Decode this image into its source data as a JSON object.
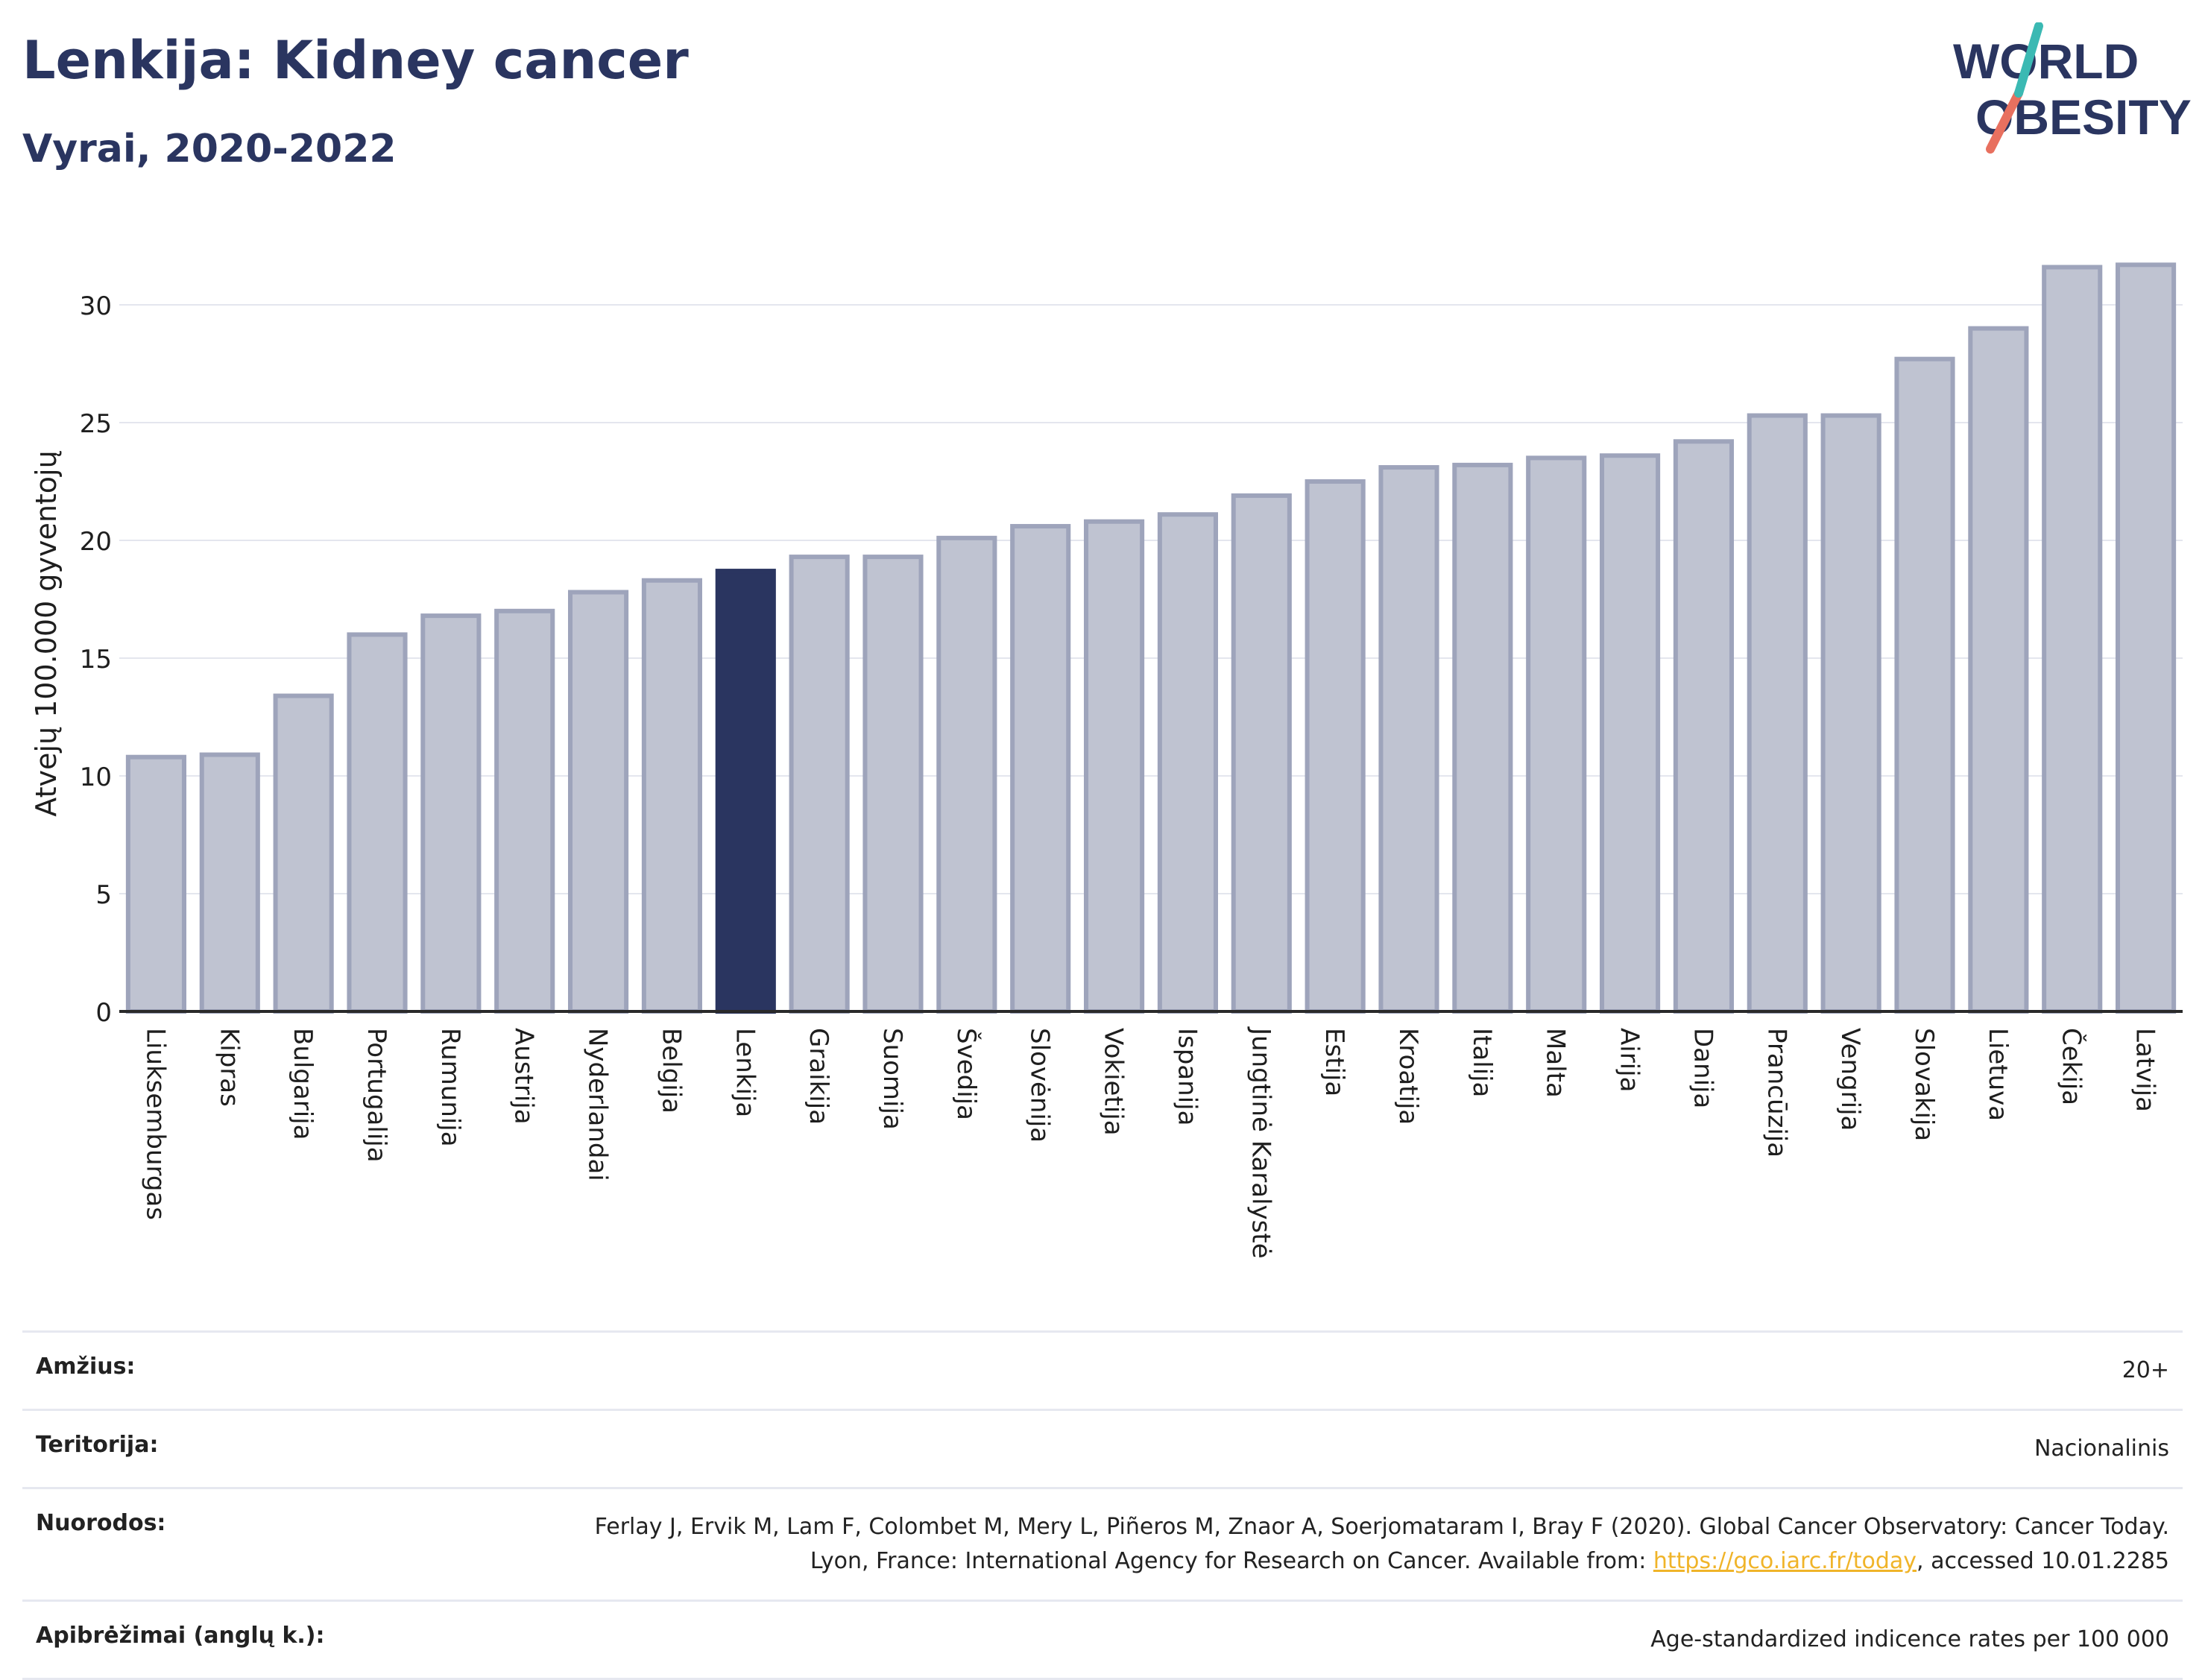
{
  "header": {
    "title": "Lenkija: Kidney cancer",
    "subtitle": "Vyrai, 2020-2022"
  },
  "logo": {
    "line1": "WORLD",
    "line2": "OBESITY"
  },
  "chart_data": {
    "type": "bar",
    "ylabel": "Atvejų 100.000 gyventojų",
    "ylim": [
      0,
      32.5
    ],
    "yticks": [
      0,
      5,
      10,
      15,
      20,
      25,
      30
    ],
    "grid": true,
    "highlight": "Lenkija",
    "colors": {
      "bar": "#bfc3d1",
      "bar_border": "#9ea4bb",
      "highlight": "#2a3560",
      "grid": "#e4e6ee",
      "axis": "#2a2a2a"
    },
    "categories": [
      "Liuksemburgas",
      "Kipras",
      "Bulgarija",
      "Portugalija",
      "Rumunija",
      "Austrija",
      "Nyderlandai",
      "Belgija",
      "Lenkija",
      "Graikija",
      "Suomija",
      "Švedija",
      "Slovėnija",
      "Vokietija",
      "Ispanija",
      "Jungtinė Karalystė",
      "Estija",
      "Kroatija",
      "Italija",
      "Malta",
      "Airija",
      "Danija",
      "Prancūzija",
      "Vengrija",
      "Slovakija",
      "Lietuva",
      "Čekija",
      "Latvija"
    ],
    "values": [
      10.8,
      10.9,
      13.4,
      16.0,
      16.8,
      17.0,
      17.8,
      18.3,
      18.7,
      19.3,
      19.3,
      20.1,
      20.6,
      20.8,
      21.1,
      21.9,
      22.5,
      23.1,
      23.2,
      23.5,
      23.6,
      24.2,
      25.3,
      25.3,
      27.7,
      29.0,
      31.6,
      31.7
    ]
  },
  "info": {
    "age_label": "Amžius:",
    "age_value": "20+",
    "territory_label": "Teritorija:",
    "territory_value": "Nacionalinis",
    "refs_label": "Nuorodos:",
    "refs_text_before": "Ferlay J, Ervik M, Lam F, Colombet M, Mery L, Piñeros M, Znaor A, Soerjomataram I, Bray F (2020). Global Cancer Observatory: Cancer Today. Lyon, France: International Agency for Research on Cancer. Available from: ",
    "refs_link": "https://gco.iarc.fr/today",
    "refs_text_after": ", accessed 10.01.2285",
    "definitions_label": "Apibrėžimai (anglų k.):",
    "definitions_value": "Age-standardized indicence rates per 100 000"
  }
}
